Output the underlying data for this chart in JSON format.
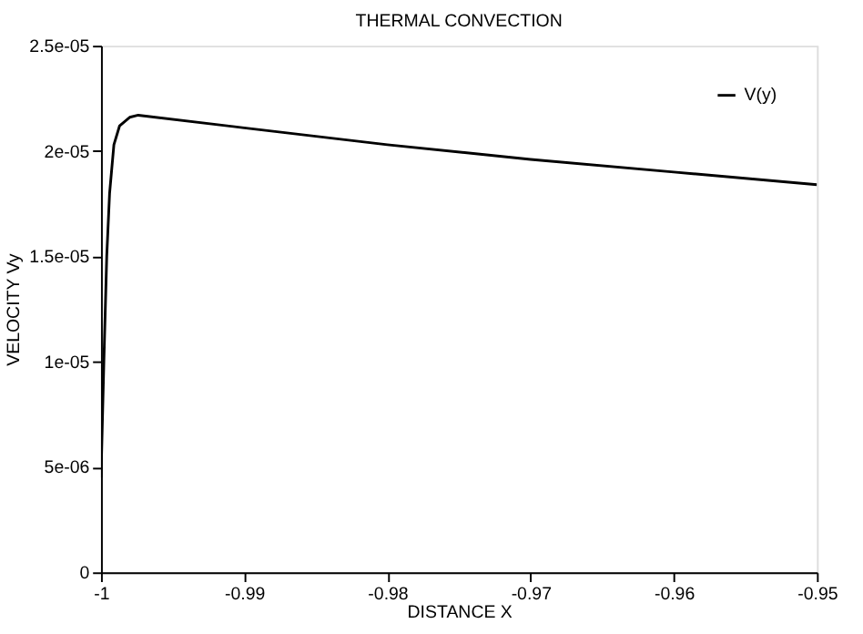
{
  "chart_data": {
    "type": "line",
    "title": "THERMAL CONVECTION",
    "xlabel": "DISTANCE X",
    "ylabel": "VELOCITY Vy",
    "series": [
      {
        "name": "V(y)",
        "color": "#000000",
        "x": [
          -1,
          -0.9998,
          -0.9996,
          -0.9994,
          -0.9991,
          -0.9987,
          -0.998,
          -0.9974,
          -0.99,
          -0.98,
          -0.97,
          -0.96,
          -0.95
        ],
        "values": [
          4.5e-06,
          1e-05,
          1.5e-05,
          1.8e-05,
          2.03e-05,
          2.12e-05,
          2.16e-05,
          2.17e-05,
          2.11e-05,
          2.03e-05,
          1.96e-05,
          1.9e-05,
          1.84e-05
        ]
      }
    ],
    "xlim": [
      -1,
      -0.95
    ],
    "xticks": [
      -1,
      -0.99,
      -0.98,
      -0.97,
      -0.96,
      -0.95
    ],
    "ylim": [
      0,
      2.5e-05
    ],
    "yticks": [
      0,
      {
        "value": 5e-06,
        "label": "5e-06"
      },
      {
        "value": 1e-05,
        "label": "1e-05"
      },
      {
        "value": 1.5e-05,
        "label": "1.5e-05"
      },
      {
        "value": 2e-05,
        "label": "2e-05"
      },
      {
        "value": 2.5e-05,
        "label": "2.5e-05"
      }
    ],
    "grid": false,
    "legend": "top right",
    "marker": "none",
    "line_style": "solid"
  }
}
